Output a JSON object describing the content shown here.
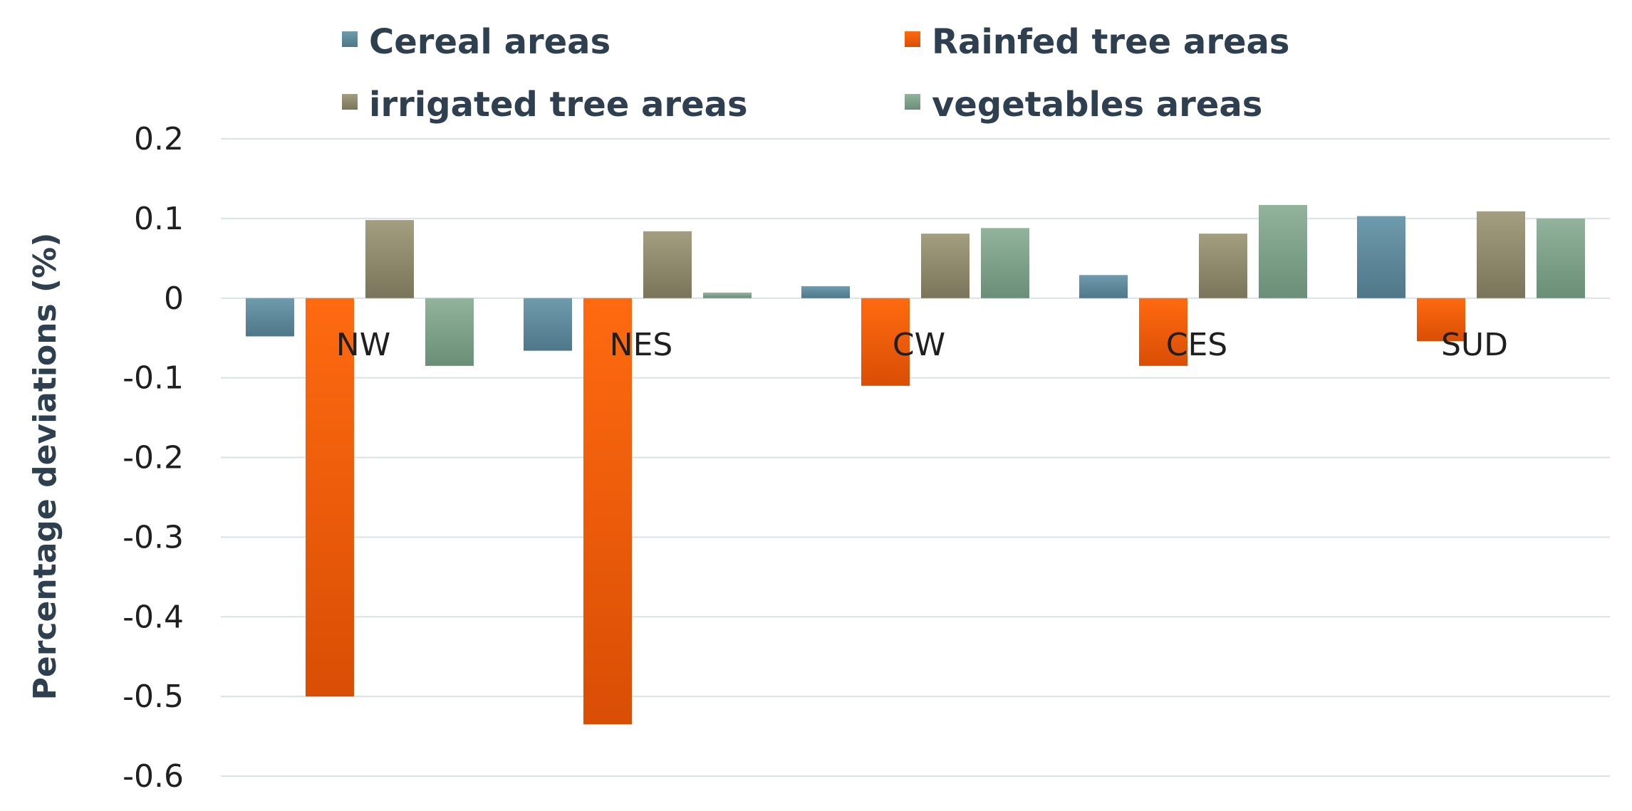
{
  "chart_data": {
    "type": "bar",
    "title": "",
    "xlabel": "",
    "ylabel": "Percentage deviations  (%)",
    "categories": [
      "NW",
      "NES",
      "CW",
      "CES",
      "SUD"
    ],
    "series": [
      {
        "name": "Cereal areas",
        "color": "#5f8a9c",
        "values": [
          -0.048,
          -0.066,
          0.015,
          0.029,
          0.103
        ]
      },
      {
        "name": "Rainfed tree areas",
        "color": "#f06010",
        "values": [
          -0.5,
          -0.535,
          -0.11,
          -0.085,
          -0.054
        ]
      },
      {
        "name": "irrigated tree areas",
        "color": "#8f8a6c",
        "values": [
          0.098,
          0.084,
          0.081,
          0.081,
          0.109
        ]
      },
      {
        "name": "vegetables areas",
        "color": "#7fa08a",
        "values": [
          -0.085,
          0.007,
          0.088,
          0.117,
          0.1
        ]
      }
    ],
    "ylim": [
      -0.6,
      0.2
    ],
    "yticks": [
      0.2,
      0.1,
      0,
      -0.1,
      -0.2,
      -0.3,
      -0.4,
      -0.5,
      -0.6
    ],
    "ytick_labels": [
      "0.2",
      "0.1",
      "0",
      "-0.1",
      "-0.2",
      "-0.3",
      "-0.4",
      "-0.5",
      "-0.6"
    ],
    "grid": true,
    "legend_position": "top"
  }
}
